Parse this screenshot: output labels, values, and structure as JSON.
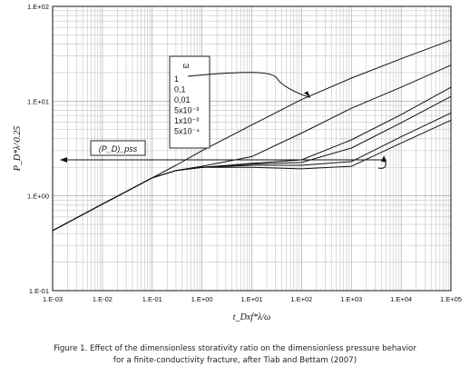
{
  "chart_data": {
    "type": "line",
    "title": "",
    "xlabel": "t_Dxf*λ/ω",
    "ylabel": "P_D*λ^0.25",
    "xscale": "log",
    "yscale": "log",
    "xlim": [
      0.001,
      100000
    ],
    "ylim": [
      0.1,
      100
    ],
    "grid": true,
    "x_tick_labels": [
      "1.E-03",
      "1.E-02",
      "1.E-01",
      "1.E+00",
      "1.E+01",
      "1.E+02",
      "1.E+03",
      "1.E+04",
      "1.E+05"
    ],
    "y_tick_labels": [
      "1.E-01",
      "1.E+00",
      "1.E+01",
      "1.E+02"
    ],
    "series": [
      {
        "name": "1",
        "x": [
          0.001,
          0.01,
          0.1,
          0.3,
          1,
          10,
          100,
          1000,
          10000,
          100000
        ],
        "y": [
          0.43,
          0.82,
          1.55,
          2.1,
          3.0,
          5.6,
          10.4,
          17.5,
          28,
          44
        ]
      },
      {
        "name": "0,1",
        "x": [
          0.001,
          0.01,
          0.1,
          0.3,
          1,
          10,
          100,
          1000,
          10000,
          100000
        ],
        "y": [
          0.43,
          0.82,
          1.55,
          1.85,
          2.05,
          2.6,
          4.6,
          8.4,
          14,
          24
        ]
      },
      {
        "name": "0,01",
        "x": [
          0.001,
          0.01,
          0.1,
          0.3,
          1,
          10,
          100,
          1000,
          10000,
          100000
        ],
        "y": [
          0.43,
          0.82,
          1.55,
          1.85,
          2.0,
          2.2,
          2.4,
          3.9,
          7.2,
          14
        ]
      },
      {
        "name": "5x10^-3",
        "x": [
          0.001,
          0.01,
          0.1,
          0.3,
          1,
          10,
          100,
          1000,
          10000,
          100000
        ],
        "y": [
          0.43,
          0.82,
          1.55,
          1.85,
          2.0,
          2.17,
          2.25,
          3.2,
          5.9,
          11.2
        ]
      },
      {
        "name": "1x10^-3",
        "x": [
          0.001,
          0.01,
          0.1,
          0.3,
          1,
          10,
          100,
          1000,
          10000,
          100000
        ],
        "y": [
          0.43,
          0.82,
          1.55,
          1.85,
          2.0,
          2.1,
          2.1,
          2.3,
          4.2,
          7.5
        ]
      },
      {
        "name": "5x10^-4",
        "x": [
          0.001,
          0.01,
          0.1,
          0.3,
          1,
          10,
          100,
          1000,
          10000,
          100000
        ],
        "y": [
          0.43,
          0.82,
          1.55,
          1.85,
          2.0,
          2.0,
          1.93,
          2.05,
          3.6,
          6.3
        ]
      }
    ],
    "annotations": {
      "omega_symbol": "ω",
      "omega_values": [
        "1",
        "0,1",
        "0,01",
        "5x10⁻³",
        "1x10⁻³",
        "5x10⁻⁴"
      ],
      "pd_label": "(P_D)_pss",
      "pd_value": 2.4
    }
  },
  "caption": {
    "line1": "Figure 1. Effect of the dimensionless storativity ratio on the dimensionless pressure behavior",
    "line2": "for a finite-conductivity fracture, after Tiab and Bettam (2007)"
  }
}
